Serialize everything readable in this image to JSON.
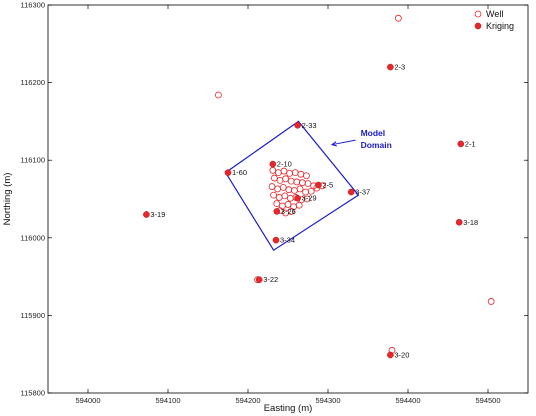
{
  "chart_data": {
    "type": "scatter",
    "xlabel": "Easting (m)",
    "ylabel": "Northing (m)",
    "xlim": [
      593950,
      594550
    ],
    "ylim": [
      115800,
      116300
    ],
    "xticks": [
      594000,
      594100,
      594200,
      594300,
      594400,
      594500
    ],
    "yticks": [
      115800,
      115900,
      116000,
      116100,
      116200,
      116300
    ],
    "grid": false,
    "legend_position": "top-right",
    "series": [
      {
        "name": "Well",
        "marker": "open-circle",
        "color": "#e8262b",
        "points": [
          [
            594388,
            116283
          ],
          [
            594163,
            116184
          ],
          [
            594504,
            115918
          ],
          [
            594380,
            115855
          ],
          [
            594212,
            115946
          ],
          [
            594231,
            116087
          ],
          [
            594238,
            116084
          ],
          [
            594245,
            116086
          ],
          [
            594252,
            116083
          ],
          [
            594259,
            116084
          ],
          [
            594266,
            116082
          ],
          [
            594273,
            116080
          ],
          [
            594233,
            116077
          ],
          [
            594240,
            116074
          ],
          [
            594247,
            116076
          ],
          [
            594254,
            116073
          ],
          [
            594261,
            116072
          ],
          [
            594268,
            116071
          ],
          [
            594275,
            116070
          ],
          [
            594282,
            116067
          ],
          [
            594230,
            116066
          ],
          [
            594237,
            116063
          ],
          [
            594244,
            116065
          ],
          [
            594251,
            116062
          ],
          [
            594258,
            116061
          ],
          [
            594265,
            116063
          ],
          [
            594272,
            116059
          ],
          [
            594279,
            116060
          ],
          [
            594286,
            116064
          ],
          [
            594293,
            116067
          ],
          [
            594232,
            116055
          ],
          [
            594239,
            116052
          ],
          [
            594246,
            116054
          ],
          [
            594253,
            116051
          ],
          [
            594260,
            116052
          ],
          [
            594267,
            116049
          ],
          [
            594274,
            116050
          ],
          [
            594236,
            116044
          ],
          [
            594243,
            116041
          ],
          [
            594250,
            116043
          ],
          [
            594257,
            116040
          ],
          [
            594264,
            116042
          ],
          [
            594240,
            116035
          ],
          [
            594247,
            116032
          ],
          [
            594254,
            116034
          ]
        ]
      },
      {
        "name": "Kriging",
        "marker": "filled-circle",
        "color": "#e8262b",
        "points": [
          {
            "label": "2-3",
            "x": 594378,
            "y": 116220
          },
          {
            "label": "2-33",
            "x": 594262,
            "y": 116145
          },
          {
            "label": "2-1",
            "x": 594466,
            "y": 116121
          },
          {
            "label": "2-10",
            "x": 594231,
            "y": 116095
          },
          {
            "label": "1-60",
            "x": 594175,
            "y": 116084
          },
          {
            "label": "2-5",
            "x": 594288,
            "y": 116068
          },
          {
            "label": "3-37",
            "x": 594329,
            "y": 116059
          },
          {
            "label": "3-29",
            "x": 594262,
            "y": 116051
          },
          {
            "label": "3-26",
            "x": 594236,
            "y": 116034
          },
          {
            "label": "3-19",
            "x": 594073,
            "y": 116030
          },
          {
            "label": "3-18",
            "x": 594464,
            "y": 116020
          },
          {
            "label": "3-34",
            "x": 594235,
            "y": 115997
          },
          {
            "label": "3-22",
            "x": 594214,
            "y": 115946
          },
          {
            "label": "3-20",
            "x": 594378,
            "y": 115849
          }
        ]
      }
    ],
    "domain_polygon": {
      "color": "#1a1ad0",
      "vertices": [
        [
          594263,
          116150
        ],
        [
          594338,
          116055
        ],
        [
          594232,
          115984
        ],
        [
          594172,
          116084
        ]
      ]
    },
    "annotation": {
      "lines": [
        "Model",
        "Domain"
      ],
      "arrow_to": [
        594305,
        116120
      ],
      "text_at": [
        594337,
        116131
      ]
    }
  }
}
